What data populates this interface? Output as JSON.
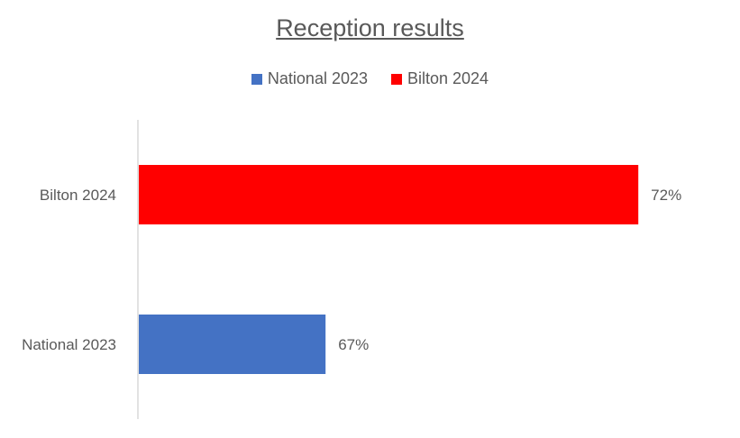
{
  "chart_data": {
    "type": "bar",
    "orientation": "horizontal",
    "title": "Reception results",
    "categories": [
      "National 2023",
      "Bilton 2024"
    ],
    "values": [
      67,
      72
    ],
    "value_labels": [
      "67%",
      "72%"
    ],
    "colors": [
      "#4472C4",
      "#FF0000"
    ],
    "xlim": [
      64,
      72.3
    ],
    "grid": false,
    "legend": {
      "position": "top",
      "entries": [
        {
          "label": "National 2023",
          "color": "#4472C4"
        },
        {
          "label": "Bilton 2024",
          "color": "#FF0000"
        }
      ]
    }
  }
}
